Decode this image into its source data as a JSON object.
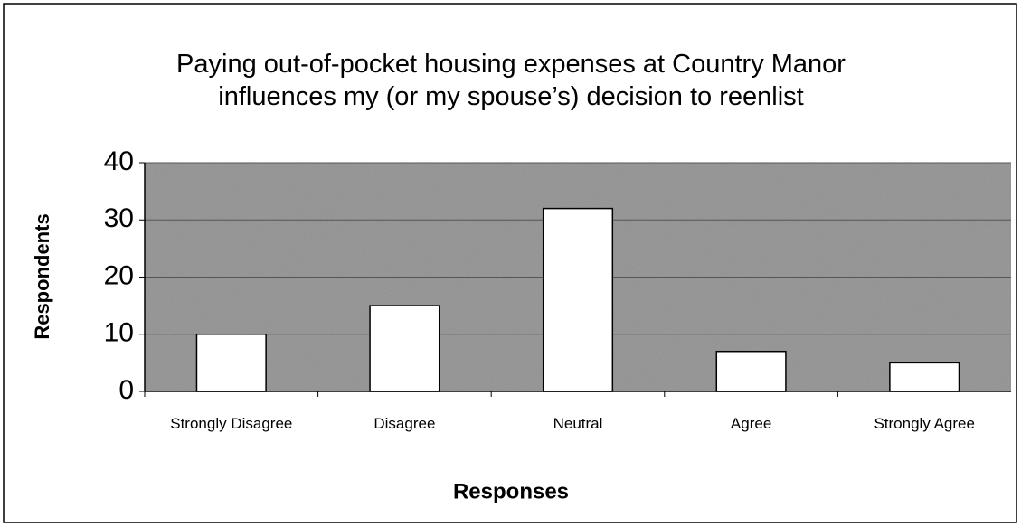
{
  "chart_data": {
    "type": "bar",
    "title": "Paying out-of-pocket housing expenses at Country Manor influences my (or my spouse’s) decision to reenlist",
    "x_label": "Responses",
    "y_label": "Respondents",
    "categories": [
      "Strongly Disagree",
      "Disagree",
      "Neutral",
      "Agree",
      "Strongly Agree"
    ],
    "values": [
      10,
      15,
      32,
      7,
      5
    ],
    "color": "#ffffff",
    "ylim": [
      0,
      40
    ],
    "yticks": [
      0,
      10,
      20,
      30,
      40
    ],
    "grid": true
  }
}
